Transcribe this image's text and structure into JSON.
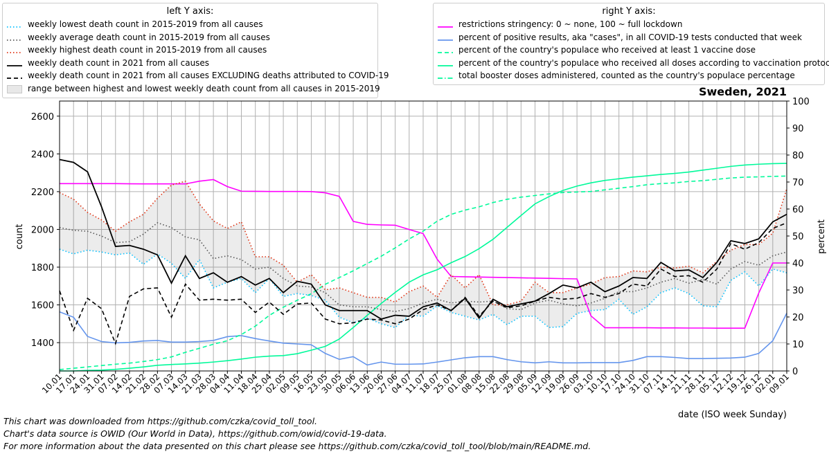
{
  "chart_data": {
    "type": "line",
    "title": "Sweden, 2021",
    "xlabel": "date (ISO week Sunday)",
    "ylabel_left": "count",
    "ylabel_right": "percent",
    "ylim_left": [
      1250,
      2680
    ],
    "ylim_right": [
      0,
      100
    ],
    "left_ticks": [
      1400,
      1600,
      1800,
      2000,
      2200,
      2400,
      2600
    ],
    "right_ticks": [
      0,
      10,
      20,
      30,
      40,
      50,
      60,
      70,
      80,
      90,
      100
    ],
    "grid": true,
    "categories": [
      "10.01",
      "17.01",
      "24.01",
      "31.01",
      "07.02",
      "14.02",
      "21.02",
      "28.02",
      "07.03",
      "14.03",
      "21.03",
      "28.03",
      "04.04",
      "11.04",
      "18.04",
      "25.04",
      "02.05",
      "09.05",
      "16.05",
      "23.05",
      "30.05",
      "06.06",
      "13.06",
      "20.06",
      "27.06",
      "04.07",
      "11.07",
      "18.07",
      "25.07",
      "01.08",
      "08.08",
      "15.08",
      "22.08",
      "29.08",
      "05.09",
      "12.09",
      "19.09",
      "26.09",
      "03.10",
      "10.10",
      "17.10",
      "24.10",
      "31.10",
      "07.11",
      "14.11",
      "21.11",
      "28.11",
      "05.12",
      "12.12",
      "19.12",
      "26.12",
      "02.01",
      "09.01"
    ],
    "left_series": [
      {
        "name": "weekly lowest death count in 2015-2019 from all causes",
        "style": "dotted",
        "color": "#00bfff",
        "values": [
          1895,
          1870,
          1890,
          1880,
          1865,
          1875,
          1815,
          1870,
          1820,
          1740,
          1840,
          1690,
          1720,
          1740,
          1665,
          1740,
          1645,
          1660,
          1650,
          1625,
          1535,
          1505,
          1530,
          1500,
          1480,
          1545,
          1540,
          1595,
          1560,
          1540,
          1520,
          1550,
          1495,
          1540,
          1540,
          1480,
          1485,
          1555,
          1570,
          1575,
          1630,
          1550,
          1590,
          1665,
          1690,
          1660,
          1595,
          1590,
          1730,
          1775,
          1700,
          1790,
          1770
        ]
      },
      {
        "name": "weekly average death count in 2015-2019 from all causes",
        "style": "dotted",
        "color": "#555555",
        "values": [
          2010,
          1995,
          1990,
          1965,
          1930,
          1935,
          1975,
          2035,
          2010,
          1960,
          1945,
          1845,
          1860,
          1840,
          1790,
          1800,
          1740,
          1700,
          1695,
          1665,
          1600,
          1590,
          1590,
          1575,
          1565,
          1580,
          1610,
          1630,
          1610,
          1620,
          1615,
          1620,
          1580,
          1575,
          1610,
          1625,
          1605,
          1595,
          1610,
          1635,
          1670,
          1670,
          1690,
          1720,
          1740,
          1715,
          1735,
          1710,
          1790,
          1830,
          1810,
          1860,
          1880
        ]
      },
      {
        "name": "weekly highest death count in 2015-2019 from all causes",
        "style": "dotted",
        "color": "#e03010",
        "values": [
          2195,
          2160,
          2090,
          2050,
          1990,
          2040,
          2080,
          2165,
          2235,
          2255,
          2135,
          2045,
          2005,
          2040,
          1855,
          1855,
          1810,
          1720,
          1760,
          1680,
          1690,
          1665,
          1640,
          1640,
          1615,
          1670,
          1700,
          1640,
          1760,
          1690,
          1760,
          1600,
          1600,
          1620,
          1720,
          1665,
          1665,
          1690,
          1710,
          1745,
          1750,
          1780,
          1775,
          1800,
          1795,
          1805,
          1770,
          1830,
          1890,
          1920,
          1920,
          1980,
          2215
        ]
      },
      {
        "name": "weekly death count in 2021 from all causes",
        "style": "solid",
        "color": "#000000",
        "values": [
          2370,
          2355,
          2305,
          2120,
          1910,
          1915,
          1895,
          1865,
          1715,
          1860,
          1740,
          1770,
          1720,
          1750,
          1705,
          1740,
          1665,
          1725,
          1710,
          1600,
          1570,
          1570,
          1570,
          1525,
          1545,
          1540,
          1590,
          1610,
          1570,
          1635,
          1530,
          1630,
          1590,
          1605,
          1620,
          1660,
          1705,
          1690,
          1720,
          1670,
          1700,
          1745,
          1740,
          1825,
          1780,
          1785,
          1745,
          1825,
          1940,
          1925,
          1950,
          2040,
          2080
        ]
      },
      {
        "name": "weekly death count in 2021 from all causes EXCLUDING deaths attributed to COVID-19",
        "style": "dashed",
        "color": "#000000",
        "values": [
          1675,
          1465,
          1635,
          1580,
          1395,
          1645,
          1685,
          1690,
          1535,
          1710,
          1625,
          1630,
          1625,
          1630,
          1560,
          1615,
          1550,
          1605,
          1610,
          1525,
          1500,
          1505,
          1525,
          1520,
          1500,
          1525,
          1575,
          1600,
          1570,
          1640,
          1540,
          1620,
          1585,
          1595,
          1620,
          1640,
          1630,
          1635,
          1660,
          1640,
          1660,
          1710,
          1700,
          1790,
          1750,
          1755,
          1720,
          1790,
          1925,
          1895,
          1930,
          2005,
          2035
        ]
      }
    ],
    "band_label": "range between highest and lowest weekly death count from all causes in 2015-2019",
    "right_series": [
      {
        "name": "restrictions stringency: 0 ~ none, 100 ~ full lockdown",
        "style": "solid",
        "color": "#ff00ff",
        "values": [
          69.4,
          69.4,
          69.4,
          69.4,
          69.4,
          69.35,
          69.3,
          69.3,
          69.3,
          69.3,
          70.3,
          70.9,
          68.3,
          66.6,
          66.55,
          66.5,
          66.5,
          66.5,
          66.45,
          66.0,
          64.7,
          55.4,
          54.3,
          54.1,
          54.0,
          52.4,
          50.9,
          41.4,
          35.0,
          34.9,
          34.8,
          34.7,
          34.6,
          34.5,
          34.4,
          34.3,
          34.2,
          34.1,
          20.4,
          16.0,
          16.0,
          16.0,
          16.0,
          15.95,
          15.95,
          15.9,
          15.9,
          15.85,
          15.85,
          15.85,
          28.9,
          40.0,
          40.0
        ]
      },
      {
        "name": "percent of positive results, aka \"cases\", in all COVID-19 tests conducted that week",
        "style": "solid",
        "color": "#6495ed",
        "values": [
          21.9,
          19.9,
          12.8,
          10.9,
          10.4,
          10.6,
          11.1,
          11.3,
          10.7,
          10.7,
          10.9,
          11.3,
          12.7,
          13.1,
          12.0,
          11.1,
          10.3,
          10.0,
          9.7,
          6.5,
          4.3,
          5.3,
          2.2,
          3.3,
          2.5,
          2.5,
          2.6,
          3.3,
          4.1,
          4.9,
          5.3,
          5.3,
          4.2,
          3.4,
          3.0,
          3.4,
          3.0,
          3.0,
          3.1,
          3.1,
          3.1,
          3.9,
          5.3,
          5.3,
          5.0,
          4.6,
          4.6,
          4.7,
          4.8,
          5.1,
          6.5,
          11.2,
          21.4
        ]
      },
      {
        "name": "percent of the country's populace who received at least 1 vaccine dose",
        "style": "dashed",
        "color": "#00fa9a",
        "values": [
          0.5,
          1.0,
          1.5,
          2.0,
          2.5,
          2.9,
          3.5,
          4.2,
          5.2,
          6.9,
          8.4,
          9.9,
          11.2,
          13.5,
          16.6,
          20.6,
          23.6,
          26.2,
          28.6,
          32.1,
          34.6,
          37.1,
          39.8,
          42.5,
          45.6,
          48.9,
          51.8,
          55.5,
          58.0,
          59.6,
          60.8,
          62.4,
          63.6,
          64.4,
          65.0,
          65.6,
          66.1,
          66.3,
          66.5,
          67.1,
          67.7,
          68.3,
          69.0,
          69.4,
          69.7,
          70.2,
          70.5,
          71.0,
          71.5,
          71.8,
          71.9,
          72.1,
          72.2
        ]
      },
      {
        "name": "percent of the country's populace who received all doses according to vaccination protocol",
        "style": "solid",
        "color": "#00fa9a",
        "values": [
          0.0,
          0.0,
          0.2,
          0.3,
          0.6,
          1.0,
          1.5,
          2.1,
          2.4,
          2.6,
          2.9,
          3.3,
          3.8,
          4.4,
          5.1,
          5.5,
          5.7,
          6.4,
          7.7,
          9.1,
          11.8,
          16.1,
          20.6,
          25.0,
          29.1,
          32.9,
          35.6,
          37.5,
          40.1,
          42.4,
          45.3,
          48.8,
          53.2,
          57.6,
          61.9,
          64.6,
          66.9,
          68.5,
          69.7,
          70.6,
          71.2,
          71.8,
          72.3,
          72.8,
          73.2,
          73.7,
          74.4,
          75.1,
          75.8,
          76.3,
          76.6,
          76.8,
          76.9
        ]
      },
      {
        "name": "total booster doses administered, counted as the country's populace percentage",
        "style": "dashdot",
        "color": "#00fa9a",
        "values": []
      }
    ]
  },
  "legend_left": {
    "title": "left Y axis:",
    "items": [
      {
        "label": "weekly lowest death count in 2015-2019 from all causes",
        "kind": "dotted",
        "color": "#00bfff"
      },
      {
        "label": "weekly average death count in 2015-2019 from all causes",
        "kind": "dotted",
        "color": "#555555"
      },
      {
        "label": "weekly highest death count in 2015-2019 from all causes",
        "kind": "dotted",
        "color": "#e03010"
      },
      {
        "label": "weekly death count in 2021 from all causes",
        "kind": "solid",
        "color": "#000000"
      },
      {
        "label": "weekly death count in 2021 from all causes EXCLUDING deaths attributed to COVID-19",
        "kind": "dashed",
        "color": "#000000"
      },
      {
        "label": "range between highest and lowest weekly death count from all causes in 2015-2019",
        "kind": "band",
        "color": "#e8e8e8"
      }
    ]
  },
  "legend_right": {
    "title": "right Y axis:",
    "items": [
      {
        "label": "restrictions stringency: 0 ~ none, 100 ~ full lockdown",
        "kind": "solid",
        "color": "#ff00ff"
      },
      {
        "label": "percent of positive results, aka \"cases\", in all COVID-19 tests conducted that week",
        "kind": "solid",
        "color": "#6495ed"
      },
      {
        "label": "percent of the country's populace who received at least 1 vaccine dose",
        "kind": "dashed",
        "color": "#00fa9a"
      },
      {
        "label": "percent of the country's populace who received all doses according to vaccination protocol",
        "kind": "solid",
        "color": "#00fa9a"
      },
      {
        "label": "total booster doses administered, counted as the country's populace percentage",
        "kind": "dashdot",
        "color": "#00fa9a"
      }
    ]
  },
  "footer": {
    "line1": "This chart was downloaded from https://github.com/czka/covid_toll_tool.",
    "line2": "Chart's data source is OWID (Our World in Data), https://github.com/owid/covid-19-data.",
    "line3": "For more information about the data presented on this chart please see https://github.com/czka/covid_toll_tool/blob/main/README.md."
  }
}
